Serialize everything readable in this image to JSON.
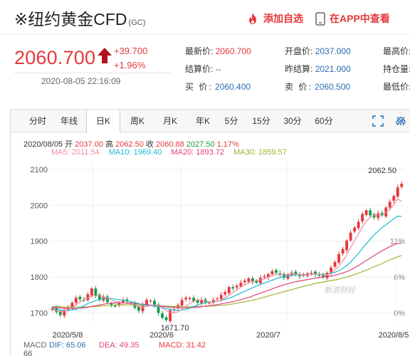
{
  "header": {
    "title": "※纽约黄金CFD",
    "code": "(GC)",
    "add_watch_label": "添加自选",
    "app_label": "在APP中查看"
  },
  "quote": {
    "last_price": "2060.700",
    "change": "+39.700",
    "change_pct": "+1.96%",
    "timestamp": "2020-08-05 22:16:09",
    "grid": [
      {
        "label": "最新价:",
        "value": "2060.700",
        "red": true
      },
      {
        "label": "开盘价:",
        "value": "2037.000"
      },
      {
        "label": "最高价:",
        "value": ""
      },
      {
        "label": "结算价:",
        "value": "--"
      },
      {
        "label": "昨结算:",
        "value": "2021.000"
      },
      {
        "label": "持仓量:",
        "value": ""
      },
      {
        "label": "买  价:",
        "value": "2060.400"
      },
      {
        "label": "卖  价:",
        "value": "2060.500"
      },
      {
        "label": "最低价:",
        "value": ""
      }
    ]
  },
  "tabs": [
    "分时",
    "年线",
    "日K",
    "周K",
    "月K",
    "年K",
    "5分",
    "15分",
    "30分",
    "60分"
  ],
  "active_tab": 2,
  "ohlc_bar": {
    "date": "2020/08/05",
    "open_label": "开",
    "open": "2037.00",
    "high_label": "高",
    "high": "2062.50",
    "close_label": "收",
    "close": "2060.88",
    "low_value": "2027.50",
    "pct": "1.17%"
  },
  "ma_legend": [
    {
      "label": "MA5: 2011.54",
      "color": "#f08ca0"
    },
    {
      "label": "MA10: 1969.40",
      "color": "#1cb9d4"
    },
    {
      "label": "MA20: 1893.72",
      "color": "#e0407a"
    },
    {
      "label": "MA30: 1859.57",
      "color": "#9cb431"
    }
  ],
  "macd_legend": [
    {
      "label": "MACD",
      "color": "#666666"
    },
    {
      "label": "DIF: 65.06",
      "color": "#2b6cb0"
    },
    {
      "label": "DEA: 49.35",
      "color": "#e0407a"
    },
    {
      "label": "MACD: 31.42",
      "color": "#e4393c"
    }
  ],
  "watermark": "新浪财经",
  "colors": {
    "up": "#e4393c",
    "down": "#1a9a4b",
    "accent": "#2b6cb0"
  },
  "chart_data": {
    "type": "candlestick",
    "y_ticks": [
      "2100",
      "2000",
      "1900",
      "1800",
      "1700"
    ],
    "pct_ticks": [
      "",
      "",
      "11%",
      "6%",
      "0%"
    ],
    "x_labels": [
      "2020/5/8",
      "2020/6",
      "2020/7",
      "2020/8/5"
    ],
    "macd_tick": "66",
    "annotations": {
      "high": "2062.50",
      "low": "1671.70"
    },
    "ylim": [
      1675,
      2120
    ],
    "close": [
      1714,
      1702,
      1694,
      1706,
      1716,
      1728,
      1742,
      1738,
      1734,
      1752,
      1768,
      1748,
      1736,
      1744,
      1730,
      1722,
      1718,
      1728,
      1736,
      1732,
      1726,
      1714,
      1706,
      1722,
      1736,
      1734,
      1720,
      1700,
      1686,
      1680,
      1708,
      1710,
      1722,
      1736,
      1742,
      1742,
      1732,
      1728,
      1736,
      1730,
      1728,
      1736,
      1740,
      1750,
      1758,
      1772,
      1768,
      1776,
      1784,
      1790,
      1796,
      1786,
      1784,
      1798,
      1802,
      1808,
      1816,
      1812,
      1806,
      1798,
      1806,
      1812,
      1808,
      1802,
      1806,
      1810,
      1812,
      1808,
      1804,
      1800,
      1812,
      1826,
      1842,
      1864,
      1878,
      1902,
      1924,
      1938,
      1954,
      1976,
      1986,
      1972,
      1966,
      1978,
      1972,
      1994,
      2010,
      2026,
      2050,
      2060
    ],
    "ma5": [
      1710,
      1706,
      1704,
      1706,
      1710,
      1714,
      1722,
      1730,
      1738,
      1743,
      1747,
      1748,
      1748,
      1745,
      1742,
      1736,
      1732,
      1730,
      1728,
      1726,
      1725,
      1722,
      1718,
      1716,
      1718,
      1721,
      1722,
      1720,
      1713,
      1706,
      1702,
      1700,
      1703,
      1710,
      1719,
      1726,
      1733,
      1736,
      1736,
      1734,
      1731,
      1730,
      1732,
      1736,
      1742,
      1749,
      1757,
      1764,
      1772,
      1778,
      1784,
      1788,
      1790,
      1792,
      1795,
      1800,
      1804,
      1807,
      1808,
      1808,
      1808,
      1809,
      1808,
      1807,
      1806,
      1806,
      1808,
      1808,
      1808,
      1807,
      1806,
      1812,
      1820,
      1831,
      1845,
      1862,
      1882,
      1902,
      1920,
      1940,
      1956,
      1966,
      1972,
      1975,
      1977,
      1980,
      1988,
      2002,
      2018,
      2011
    ],
    "ma10": [
      1712,
      1710,
      1708,
      1707,
      1707,
      1708,
      1710,
      1714,
      1720,
      1726,
      1730,
      1734,
      1737,
      1740,
      1741,
      1740,
      1738,
      1737,
      1735,
      1733,
      1731,
      1729,
      1726,
      1723,
      1721,
      1720,
      1719,
      1717,
      1715,
      1712,
      1710,
      1708,
      1707,
      1708,
      1710,
      1713,
      1718,
      1722,
      1726,
      1728,
      1730,
      1731,
      1733,
      1735,
      1738,
      1741,
      1745,
      1750,
      1755,
      1760,
      1765,
      1770,
      1775,
      1779,
      1783,
      1787,
      1791,
      1795,
      1798,
      1801,
      1803,
      1805,
      1806,
      1807,
      1807,
      1807,
      1808,
      1808,
      1808,
      1808,
      1808,
      1810,
      1813,
      1818,
      1824,
      1832,
      1842,
      1854,
      1866,
      1880,
      1893,
      1906,
      1918,
      1928,
      1938,
      1946,
      1954,
      1962,
      1970,
      1969
    ],
    "ma20": [
      1716,
      1715,
      1714,
      1713,
      1712,
      1712,
      1712,
      1713,
      1714,
      1716,
      1718,
      1720,
      1722,
      1724,
      1726,
      1727,
      1728,
      1728,
      1728,
      1728,
      1727,
      1726,
      1725,
      1724,
      1723,
      1722,
      1721,
      1720,
      1718,
      1717,
      1716,
      1715,
      1714,
      1714,
      1714,
      1714,
      1715,
      1716,
      1717,
      1719,
      1720,
      1721,
      1723,
      1725,
      1727,
      1729,
      1731,
      1734,
      1737,
      1740,
      1743,
      1747,
      1751,
      1755,
      1759,
      1763,
      1767,
      1771,
      1775,
      1778,
      1781,
      1784,
      1787,
      1789,
      1791,
      1793,
      1795,
      1797,
      1799,
      1800,
      1801,
      1803,
      1805,
      1808,
      1811,
      1815,
      1820,
      1826,
      1832,
      1839,
      1846,
      1853,
      1860,
      1867,
      1873,
      1879,
      1885,
      1890,
      1894,
      1894
    ],
    "ma30": [
      1718,
      1717,
      1717,
      1716,
      1716,
      1716,
      1716,
      1716,
      1716,
      1717,
      1717,
      1718,
      1719,
      1720,
      1720,
      1721,
      1721,
      1722,
      1722,
      1722,
      1722,
      1722,
      1722,
      1721,
      1721,
      1721,
      1720,
      1720,
      1719,
      1719,
      1718,
      1718,
      1718,
      1717,
      1717,
      1717,
      1717,
      1718,
      1718,
      1718,
      1719,
      1719,
      1720,
      1721,
      1722,
      1723,
      1725,
      1727,
      1729,
      1731,
      1733,
      1735,
      1738,
      1741,
      1744,
      1747,
      1750,
      1753,
      1756,
      1759,
      1762,
      1765,
      1768,
      1771,
      1774,
      1777,
      1779,
      1782,
      1784,
      1786,
      1788,
      1790,
      1792,
      1794,
      1797,
      1800,
      1803,
      1807,
      1811,
      1815,
      1819,
      1824,
      1829,
      1833,
      1838,
      1843,
      1848,
      1852,
      1857,
      1860
    ]
  }
}
